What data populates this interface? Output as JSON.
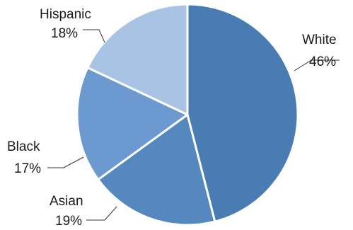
{
  "chart_data": {
    "type": "pie",
    "title": "",
    "categories": [
      "White",
      "Asian",
      "Black",
      "Hispanic"
    ],
    "values": [
      46,
      19,
      17,
      18
    ],
    "value_labels": [
      "46%",
      "19%",
      "17%",
      "18%"
    ],
    "colors": [
      "#4a7cb4",
      "#5688c0",
      "#6c9ad0",
      "#a9c3e5"
    ],
    "legend": "none",
    "start_angle_deg": 0,
    "direction": "clockwise"
  }
}
